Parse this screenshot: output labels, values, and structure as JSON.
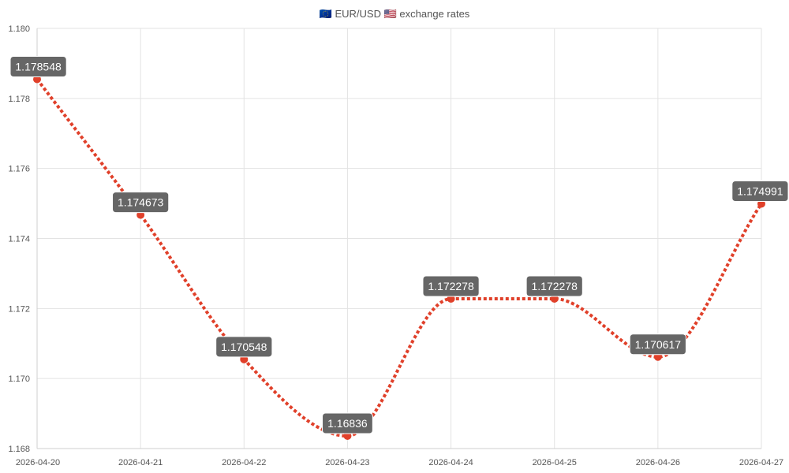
{
  "chart_data": {
    "type": "line",
    "title": "🇪🇺 EUR/USD 🇺🇸 exchange rates",
    "xlabel": "",
    "ylabel": "",
    "x": [
      "2026-04-20",
      "2026-04-21",
      "2026-04-22",
      "2026-04-23",
      "2026-04-24",
      "2026-04-25",
      "2026-04-26",
      "2026-04-27"
    ],
    "series": [
      {
        "values": [
          1.178548,
          1.174673,
          1.170548,
          1.16836,
          1.172278,
          1.172278,
          1.170617,
          1.174991
        ],
        "labels": [
          "1.178548",
          "1.174673",
          "1.170548",
          "1.16836",
          "1.172278",
          "1.172278",
          "1.170617",
          "1.174991"
        ],
        "color": "#e0402a"
      }
    ],
    "ylim": [
      1.168,
      1.18
    ],
    "yticks": [
      "1.168",
      "1.170",
      "1.172",
      "1.174",
      "1.176",
      "1.178",
      "1.180"
    ],
    "grid": true,
    "line_style": "dotted",
    "label_box_color": "#666666"
  }
}
